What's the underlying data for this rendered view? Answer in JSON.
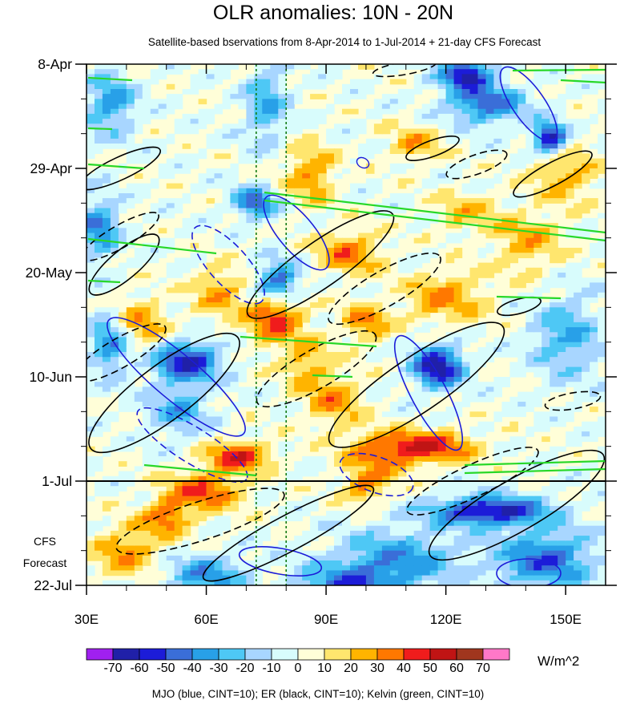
{
  "chart_data": {
    "type": "heatmap",
    "title": "OLR anomalies: 10N - 20N",
    "subtitle": "Satellite-based bservations from 8-Apr-2014 to 1-Jul-2014 + 21-day CFS Forecast",
    "x_ticks": [
      "30E",
      "60E",
      "90E",
      "120E",
      "150E"
    ],
    "x_tick_values": [
      30,
      60,
      90,
      120,
      150
    ],
    "xlim": [
      30,
      160
    ],
    "y_ticks": [
      "8-Apr",
      "29-Apr",
      "20-May",
      "10-Jun",
      "1-Jul",
      "22-Jul"
    ],
    "y_tick_values": [
      0,
      21,
      42,
      63,
      84,
      105
    ],
    "ylim": [
      0,
      105
    ],
    "y_reversed": true,
    "forecast_label": [
      "CFS",
      "Forecast"
    ],
    "forecast_start_day": 84,
    "vertical_reference_lines": [
      72.5,
      80
    ],
    "colorbar": {
      "levels": [
        "-70",
        "-60",
        "-50",
        "-40",
        "-30",
        "-20",
        "-10",
        "0",
        "10",
        "20",
        "30",
        "40",
        "50",
        "60",
        "70"
      ],
      "colors": [
        "#a020f0",
        "#2020a8",
        "#1c1cd8",
        "#3a6ed8",
        "#28a0e8",
        "#4ec8f5",
        "#a8d6ff",
        "#d8fcfc",
        "#fffed8",
        "#ffe66e",
        "#ffb400",
        "#ff7800",
        "#f01c1c",
        "#c01414",
        "#a0361e",
        "#ff78c8"
      ],
      "units": "W/m^2"
    },
    "grid": false,
    "legend_note": "MJO (blue, CINT=10); ER (black, CINT=10); Kelvin (green, CINT=10)",
    "contour_series": [
      {
        "name": "MJO",
        "color": "#1c1cd8"
      },
      {
        "name": "ER",
        "color": "#000000"
      },
      {
        "name": "Kelvin",
        "color": "#28d828"
      }
    ]
  }
}
